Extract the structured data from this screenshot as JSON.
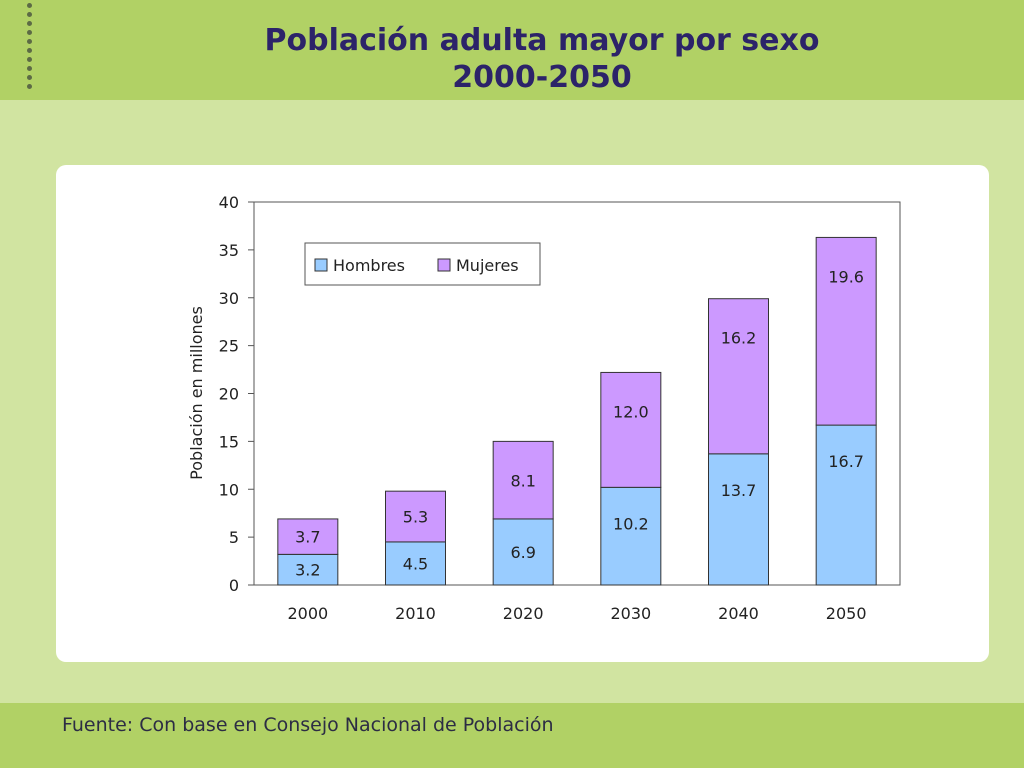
{
  "slide": {
    "title_line1": "Población adulta mayor por sexo",
    "title_line2": "2000-2050",
    "source": "Fuente: Con base en Consejo Nacional de Población"
  },
  "colors": {
    "top_band": "#b1d165",
    "background": "#d1e4a1",
    "title": "#2c2369",
    "hombres": "#99ccff",
    "mujeres": "#cc99ff"
  },
  "chart_data": {
    "type": "bar",
    "stacked": true,
    "title": "",
    "xlabel": "",
    "ylabel": "Población en millones",
    "ylim": [
      0,
      40
    ],
    "yticks": [
      "0",
      "5",
      "10",
      "15",
      "20",
      "25",
      "30",
      "35",
      "40"
    ],
    "categories": [
      "2000",
      "2010",
      "2020",
      "2030",
      "2040",
      "2050"
    ],
    "series": [
      {
        "name": "Hombres",
        "values": [
          3.2,
          4.5,
          6.9,
          10.2,
          13.7,
          16.7
        ],
        "labels": [
          "3.2",
          "4.5",
          "6.9",
          "10.2",
          "13.7",
          "16.7"
        ]
      },
      {
        "name": "Mujeres",
        "values": [
          3.7,
          5.3,
          8.1,
          12.0,
          16.2,
          19.6
        ],
        "labels": [
          "3.7",
          "5.3",
          "8.1",
          "12.0",
          "16.2",
          "19.6"
        ]
      }
    ],
    "legend": {
      "position": "top-left",
      "entries": [
        "Hombres",
        "Mujeres"
      ]
    },
    "grid": false
  }
}
